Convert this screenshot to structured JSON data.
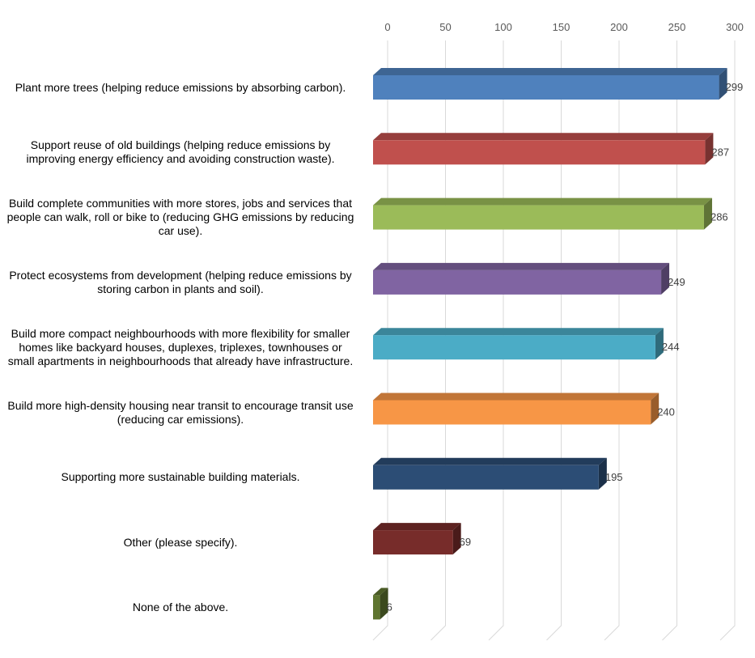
{
  "chart_data": {
    "type": "bar",
    "orientation": "horizontal",
    "style": "3d",
    "categories": [
      "Plant more trees (helping reduce emissions by absorbing carbon).",
      "Support reuse of old buildings (helping reduce emissions by improving energy efficiency and avoiding construction waste).",
      "Build complete communities with more stores, jobs and services that people can walk, roll or bike to (reducing GHG emissions by reducing car use).",
      "Protect ecosystems from development (helping reduce emissions by storing carbon in plants and soil).",
      "Build more compact neighbourhoods with more flexibility for smaller homes like backyard houses, duplexes, triplexes, townhouses or small apartments in neighbourhoods that already have infrastructure.",
      "Build more high-density housing near transit to encourage transit use (reducing car emissions).",
      "Supporting more sustainable building materials.",
      "Other (please specify).",
      "None of the above."
    ],
    "values": [
      299,
      287,
      286,
      249,
      244,
      240,
      195,
      69,
      6
    ],
    "value_labels": [
      "299",
      "287",
      "286",
      "249",
      "244",
      "240",
      "195",
      "69",
      "6"
    ],
    "colors": [
      "#4F81BD",
      "#C0504D",
      "#9BBB59",
      "#8064A2",
      "#4BACC6",
      "#F79646",
      "#2C4D75",
      "#772C2A",
      "#5F7530"
    ],
    "xlim": [
      0,
      300
    ],
    "xticks": [
      0,
      50,
      100,
      150,
      200,
      250,
      300
    ],
    "xtick_labels": [
      "0",
      "50",
      "100",
      "150",
      "200",
      "250",
      "300"
    ],
    "axis_position": "top",
    "grid": true,
    "legend": false,
    "title": "",
    "xlabel": "",
    "ylabel": ""
  }
}
